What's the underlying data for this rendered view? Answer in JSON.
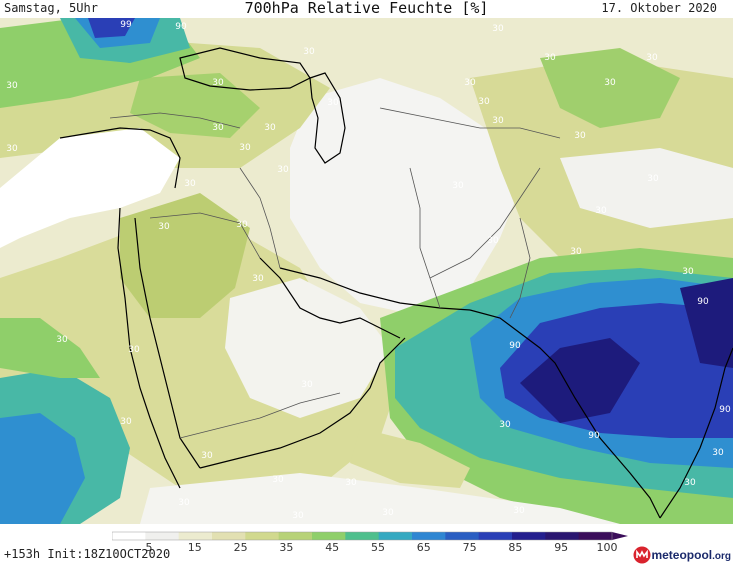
{
  "header": {
    "left": "Samstag, 5Uhr",
    "title": "700hPa Relative Feuchte [%]",
    "date": "17. Oktober 2020"
  },
  "map": {
    "contour_labels": [
      "99",
      "90",
      "30",
      "30",
      "30",
      "30",
      "30",
      "30",
      "30",
      "30",
      "30",
      "30",
      "30",
      "30",
      "30",
      "30",
      "30",
      "30",
      "30",
      "30",
      "30",
      "30",
      "30",
      "30",
      "30",
      "30",
      "30",
      "30",
      "30",
      "30",
      "30",
      "30",
      "30",
      "30",
      "30",
      "30",
      "30",
      "30",
      "30",
      "30",
      "30",
      "90",
      "90",
      "90",
      "90",
      "30",
      "30"
    ],
    "colors": {
      "very_dry": "#f7f7f7",
      "dry": "#ecebcf",
      "moderate": "#d9dc9a",
      "olive": "#bccd72",
      "green": "#8fcf6a",
      "teal": "#48b8a6",
      "blue": "#2f8fd0",
      "deep_blue": "#2a3fb6",
      "navy": "#1d1b7c",
      "coast": "#000000",
      "border": "#555555"
    }
  },
  "colorbar": {
    "ticks": [
      "5",
      "15",
      "25",
      "35",
      "45",
      "55",
      "65",
      "75",
      "85",
      "95",
      "100"
    ],
    "colors": [
      "#ffffff",
      "#f0f0ee",
      "#ecebcf",
      "#e2e0b2",
      "#d1d98e",
      "#b7d278",
      "#8fcf6a",
      "#4fbf8d",
      "#35a9c1",
      "#2f86d2",
      "#2a5ec2",
      "#2a3fb6",
      "#241f8e",
      "#2a1670",
      "#3b0e5a"
    ]
  },
  "footer": {
    "init": "+153h Init:18Z10OCT2020",
    "logo_name": "meteopool",
    "logo_domain": ".org"
  }
}
